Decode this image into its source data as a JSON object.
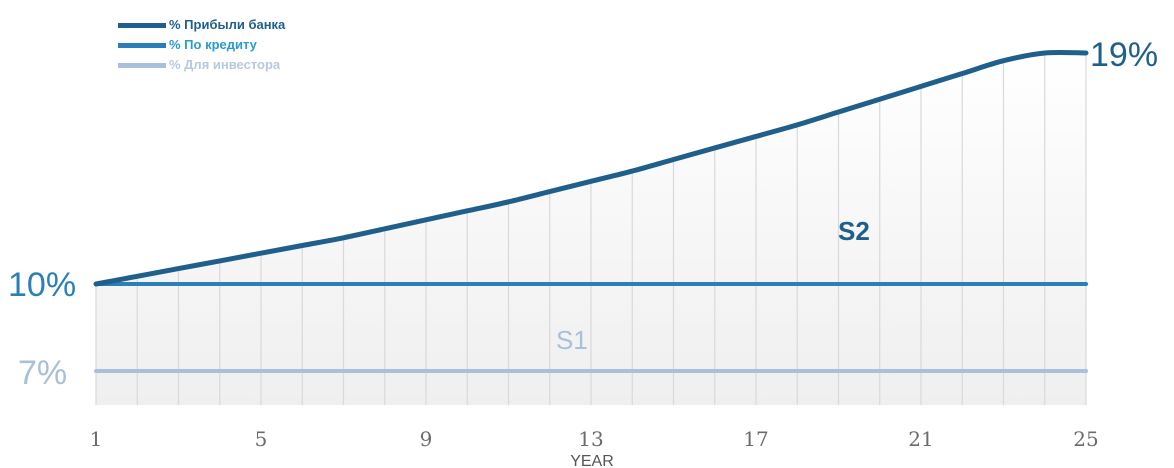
{
  "chart_data": {
    "type": "line",
    "x": [
      1,
      2,
      3,
      4,
      5,
      6,
      7,
      8,
      9,
      10,
      11,
      12,
      13,
      14,
      15,
      16,
      17,
      18,
      19,
      20,
      21,
      22,
      23,
      24,
      25
    ],
    "xlabel": "YEAR",
    "xticks": [
      1,
      5,
      9,
      13,
      17,
      21,
      25
    ],
    "series": [
      {
        "name": "% Прибыли банка",
        "color": "#1f5f8b",
        "values": [
          10.0,
          10.3,
          10.6,
          10.9,
          11.2,
          11.5,
          11.8,
          12.15,
          12.5,
          12.85,
          13.2,
          13.6,
          14.0,
          14.4,
          14.85,
          15.3,
          15.75,
          16.2,
          16.7,
          17.2,
          17.7,
          18.2,
          18.7,
          19.0,
          19.0
        ]
      },
      {
        "name": "% По кредиту",
        "color": "#2a7fb8",
        "values": [
          10,
          10,
          10,
          10,
          10,
          10,
          10,
          10,
          10,
          10,
          10,
          10,
          10,
          10,
          10,
          10,
          10,
          10,
          10,
          10,
          10,
          10,
          10,
          10,
          10
        ]
      },
      {
        "name": "% Для инвестора",
        "color": "#a9bfdc",
        "values": [
          7,
          7,
          7,
          7,
          7,
          7,
          7,
          7,
          7,
          7,
          7,
          7,
          7,
          7,
          7,
          7,
          7,
          7,
          7,
          7,
          7,
          7,
          7,
          7,
          7
        ]
      }
    ],
    "annotations": {
      "start_label": "10%",
      "end_label": "19%",
      "investor_label": "7%",
      "s1": "S1",
      "s2": "S2"
    },
    "grid": "vertical",
    "legend_position": "top-left"
  }
}
